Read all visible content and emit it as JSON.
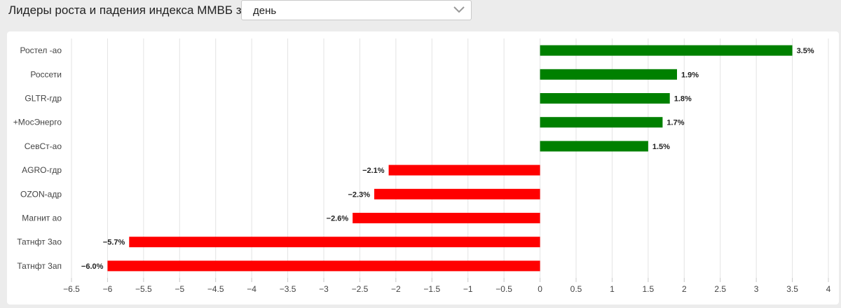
{
  "header": {
    "title": "Лидеры роста и падения индекса ММВБ за:",
    "period_value": "день",
    "chevron_icon": "chevron-down-icon"
  },
  "colors": {
    "positive": "#008000",
    "negative": "#ff0000",
    "grid": "#e3e3e3",
    "axis_text": "#444444"
  },
  "chart_data": {
    "type": "bar",
    "orientation": "horizontal",
    "title": "",
    "xlabel": "",
    "ylabel": "",
    "categories": [
      "Ростел -ао",
      "Россети",
      "GLTR-гдр",
      "+МосЭнерго",
      "СевСт-ао",
      "AGRO-гдр",
      "OZON-адр",
      "Магнит ао",
      "Татнфт 3ао",
      "Татнфт 3ап"
    ],
    "values": [
      3.5,
      1.9,
      1.8,
      1.7,
      1.5,
      -2.1,
      -2.3,
      -2.6,
      -5.7,
      -6.0
    ],
    "data_labels": [
      "3.5%",
      "1.9%",
      "1.8%",
      "1.7%",
      "1.5%",
      "−2.1%",
      "−2.3%",
      "−2.6%",
      "−5.7%",
      "−6.0%"
    ],
    "xlim": [
      -6.5,
      4
    ],
    "x_ticks": [
      -6.5,
      -6,
      -5.5,
      -5,
      -4.5,
      -4,
      -3.5,
      -3,
      -2.5,
      -2,
      -1.5,
      -1,
      -0.5,
      0,
      0.5,
      1,
      1.5,
      2,
      2.5,
      3,
      3.5,
      4
    ],
    "x_tick_labels": [
      "−6.5",
      "−6",
      "−5.5",
      "−5",
      "−4.5",
      "−4",
      "−3.5",
      "−3",
      "−2.5",
      "−2",
      "−1.5",
      "−1",
      "−0.5",
      "0",
      "0.5",
      "1",
      "1.5",
      "2",
      "2.5",
      "3",
      "3.5",
      "4"
    ],
    "grid": true,
    "legend": "none"
  }
}
